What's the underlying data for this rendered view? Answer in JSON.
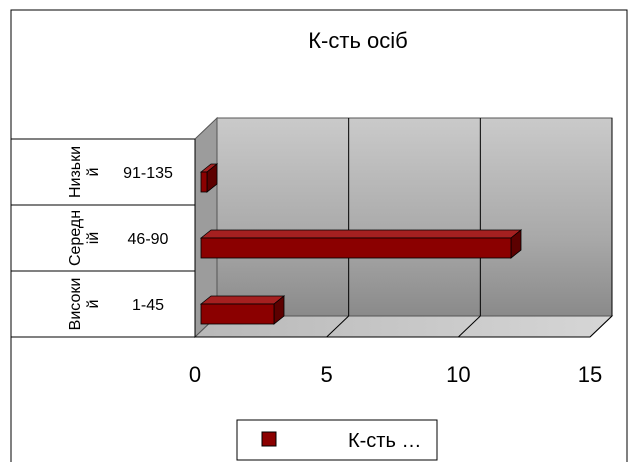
{
  "chart_data": {
    "type": "bar",
    "orientation": "horizontal",
    "style": "3d",
    "title": "К-сть осіб",
    "categories": [
      {
        "group": "Високи й",
        "range": "1-45"
      },
      {
        "group": "Середн ій",
        "range": "46-90"
      },
      {
        "group": "Низьки й",
        "range": "91-135"
      }
    ],
    "series": [
      {
        "name": "К-сть …",
        "values": [
          3,
          12,
          0.3
        ],
        "color": "#8B0000"
      }
    ],
    "xlim": [
      0,
      15
    ],
    "xticks": [
      "0",
      "5",
      "10",
      "15"
    ],
    "grid": true,
    "legend": "bottom"
  }
}
